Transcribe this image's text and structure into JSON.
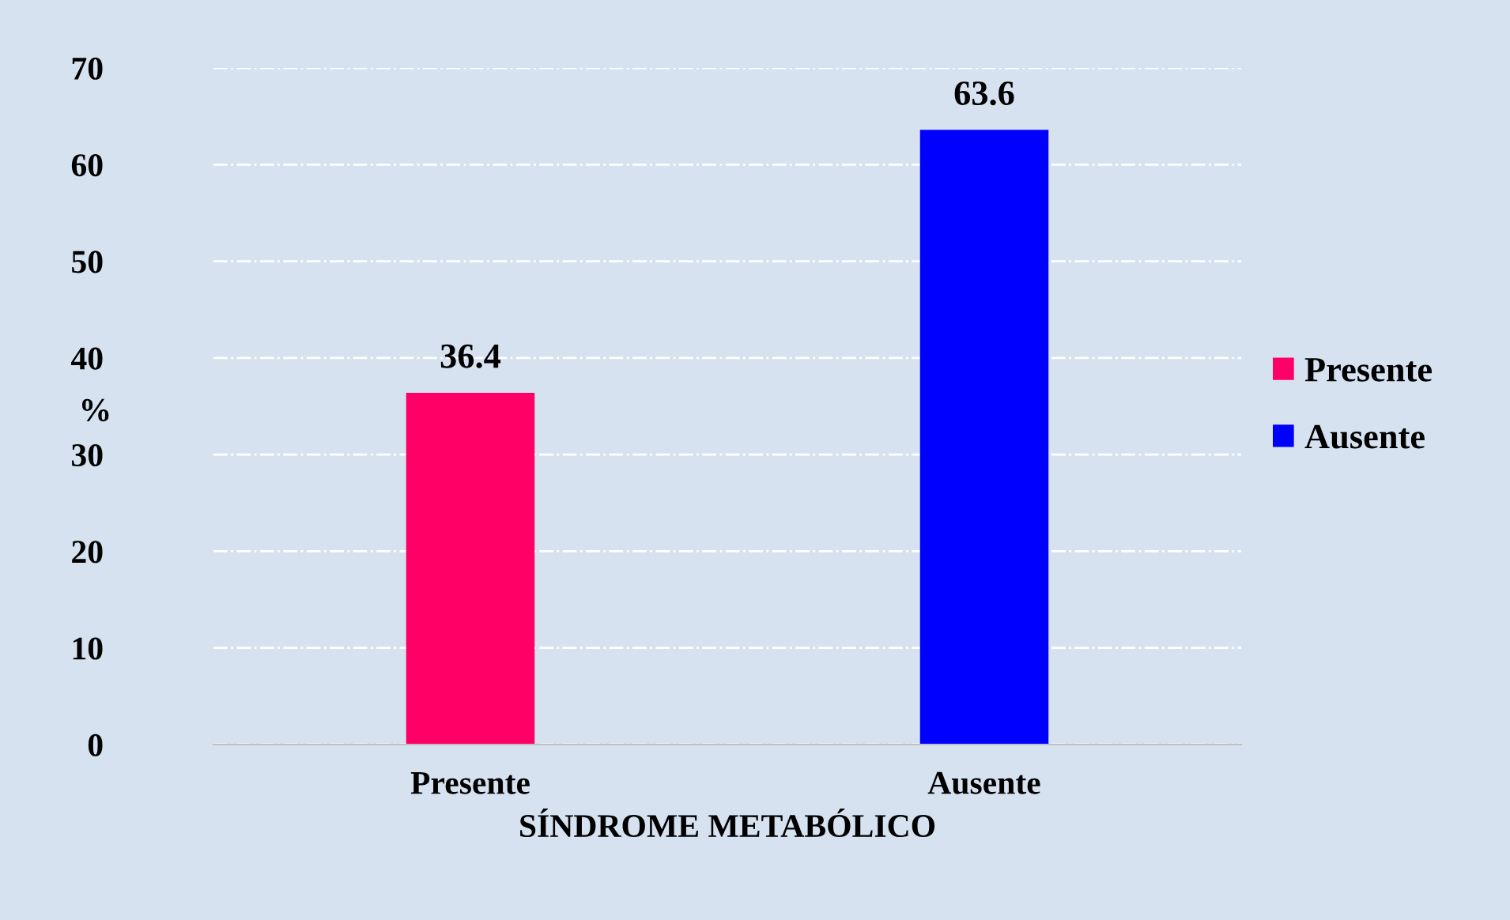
{
  "chart_data": {
    "type": "bar",
    "stacked": true,
    "xlabel": "SÍNDROME METABÓLICO",
    "ylabel": "%",
    "categories": [
      "Presente",
      "Ausente"
    ],
    "series": [
      {
        "name": "Presente",
        "color": "#ff0066",
        "values": [
          36.4,
          null
        ]
      },
      {
        "name": "Ausente",
        "color": "#0000ff",
        "values": [
          null,
          63.6
        ]
      }
    ],
    "ylim": [
      0,
      70
    ],
    "yticks": [
      0,
      10,
      20,
      30,
      40,
      50,
      60,
      70
    ],
    "grid": "y",
    "legend": "right",
    "data_labels": true
  }
}
